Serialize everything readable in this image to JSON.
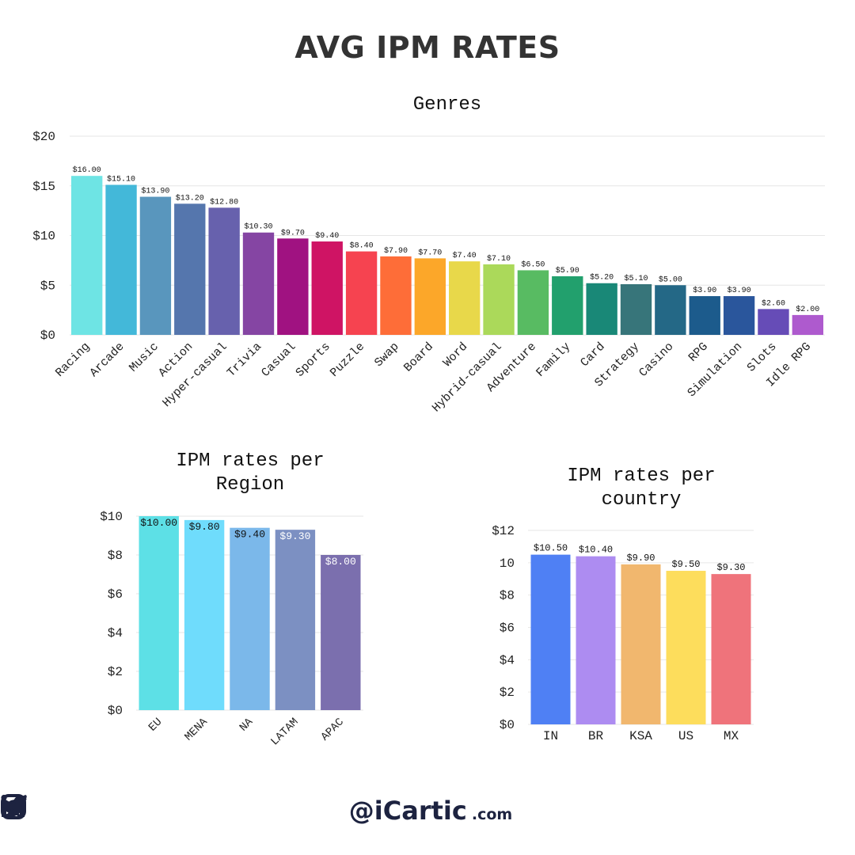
{
  "title": "AVG IPM RATES",
  "colors": {
    "text": "#333333",
    "grid": "#e6e6e6",
    "footer": "#1d2340"
  },
  "chart_data": [
    {
      "id": "genres",
      "type": "bar",
      "title": "Genres",
      "title_lines": [
        "Genres"
      ],
      "xlabel": "",
      "ylabel": "",
      "ylim": [
        0,
        20
      ],
      "yticks": [
        0,
        5,
        10,
        15,
        20
      ],
      "ytick_labels": [
        "$0",
        "$5",
        "$10",
        "$15",
        "$20"
      ],
      "grid": true,
      "legend": "none",
      "categories": [
        "Racing",
        "Arcade",
        "Music",
        "Action",
        "Hyper-casual",
        "Trivia",
        "Casual",
        "Sports",
        "Puzzle",
        "Swap",
        "Board",
        "Word",
        "Hybrid-casual",
        "Adventure",
        "Family",
        "Card",
        "Strategy",
        "Casino",
        "RPG",
        "Simulation",
        "Slots",
        "Idle RPG"
      ],
      "values": [
        16.0,
        15.1,
        13.9,
        13.2,
        12.8,
        10.3,
        9.7,
        9.4,
        8.4,
        7.9,
        7.7,
        7.4,
        7.1,
        6.5,
        5.9,
        5.2,
        5.1,
        5.0,
        3.9,
        3.9,
        2.6,
        2.0
      ],
      "data_labels": [
        "$16.00",
        "$15.10",
        "$13.90",
        "$13.20",
        "$12.80",
        "$10.30",
        "$9.70",
        "$9.40",
        "$8.40",
        "$7.90",
        "$7.70",
        "$7.40",
        "$7.10",
        "$6.50",
        "$5.90",
        "$5.20",
        "$5.10",
        "$5.00",
        "$3.90",
        "$3.90",
        "$2.60",
        "$2.00"
      ],
      "label_position": "above",
      "colors": [
        "#6ee4e4",
        "#43b8d9",
        "#5996bd",
        "#5576ad",
        "#6761ad",
        "#8545a3",
        "#a01281",
        "#cf1464",
        "#f64350",
        "#fe6d38",
        "#fca729",
        "#e8d84a",
        "#abd95a",
        "#58bb62",
        "#22a06d",
        "#198877",
        "#37757a",
        "#246886",
        "#1c5b8c",
        "#2a569c",
        "#664cb7",
        "#ae5ace"
      ]
    },
    {
      "id": "region",
      "type": "bar",
      "title": "IPM rates per Region",
      "title_lines": [
        "IPM rates per",
        "Region"
      ],
      "xlabel": "",
      "ylabel": "",
      "ylim": [
        0,
        10
      ],
      "yticks": [
        0,
        2,
        4,
        6,
        8,
        10
      ],
      "ytick_labels": [
        "$0",
        "$2",
        "$4",
        "$6",
        "$8",
        "$10"
      ],
      "grid": true,
      "legend": "none",
      "categories": [
        "EU",
        "MENA",
        "NA",
        "LATAM",
        "APAC"
      ],
      "values": [
        10.0,
        9.8,
        9.4,
        9.3,
        8.0
      ],
      "data_labels": [
        "$10.00",
        "$9.80",
        "$9.40",
        "$9.30",
        "$8.00"
      ],
      "label_position": "inside",
      "label_colors": [
        "#111111",
        "#111111",
        "#111111",
        "#ffffff",
        "#ffffff"
      ],
      "colors": [
        "#5de0e6",
        "#6fdcfc",
        "#7bb8ea",
        "#7c90c2",
        "#7b6fae"
      ]
    },
    {
      "id": "country",
      "type": "bar",
      "title": "IPM rates per country",
      "title_lines": [
        "IPM rates per",
        "country"
      ],
      "xlabel": "",
      "ylabel": "",
      "ylim": [
        0,
        12
      ],
      "yticks": [
        0,
        2,
        4,
        6,
        8,
        10,
        12
      ],
      "ytick_labels": [
        "$0",
        "$2",
        "$4",
        "$6",
        "$8",
        "10",
        "$12"
      ],
      "grid": true,
      "legend": "none",
      "categories": [
        "IN",
        "BR",
        "KSA",
        "US",
        "MX"
      ],
      "values": [
        10.5,
        10.4,
        9.9,
        9.5,
        9.3
      ],
      "data_labels": [
        "$10.50",
        "$10.40",
        "$9.90",
        "$9.50",
        "$9.30"
      ],
      "label_position": "above",
      "colors": [
        "#4f80f4",
        "#ad8cf1",
        "#f1b76e",
        "#fddd5c",
        "#ef737b"
      ]
    }
  ],
  "footer": {
    "icons": [
      "linkedin-icon",
      "instagram-icon",
      "twitter-icon",
      "telegram-icon"
    ],
    "handle": "@iCartic",
    "handle_suffix": ".com"
  }
}
